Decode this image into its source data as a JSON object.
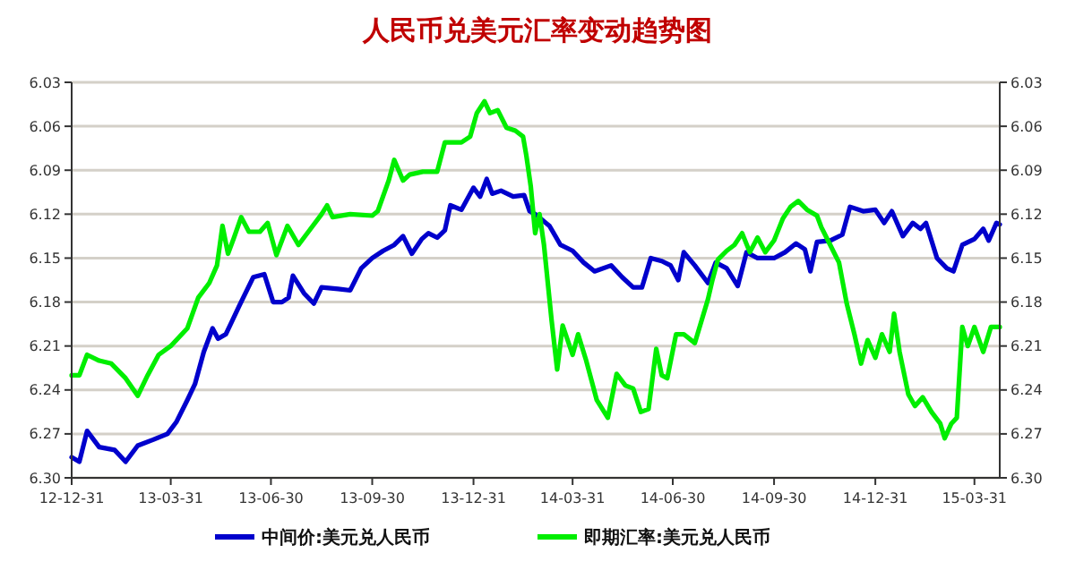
{
  "chart_data": {
    "type": "line",
    "title": "人民币兑美元汇率变动趋势图",
    "xlim": [
      "2012-12-31",
      "2015-04-23"
    ],
    "xticks": [
      {
        "value": "2012-12-31",
        "label": "12-12-31"
      },
      {
        "value": "2013-03-31",
        "label": "13-03-31"
      },
      {
        "value": "2013-06-30",
        "label": "13-06-30"
      },
      {
        "value": "2013-09-30",
        "label": "13-09-30"
      },
      {
        "value": "2013-12-31",
        "label": "13-12-31"
      },
      {
        "value": "2014-03-31",
        "label": "14-03-31"
      },
      {
        "value": "2014-06-30",
        "label": "14-06-30"
      },
      {
        "value": "2014-09-30",
        "label": "14-09-30"
      },
      {
        "value": "2014-12-31",
        "label": "14-12-31"
      },
      {
        "value": "2015-03-31",
        "label": "15-03-31"
      }
    ],
    "ylim": [
      6.3,
      6.03
    ],
    "yticks": [
      6.03,
      6.06,
      6.09,
      6.12,
      6.15,
      6.18,
      6.21,
      6.24,
      6.27,
      {
        "value": 6.3,
        "label": "6.30"
      }
    ],
    "y2lim": [
      6.3,
      6.03
    ],
    "y2ticks": [
      6.03,
      6.06,
      6.09,
      6.12,
      6.15,
      6.18,
      6.21,
      6.24,
      6.27,
      {
        "value": 6.3,
        "label": "6.30"
      }
    ],
    "grid": "y",
    "legend": "bottom",
    "marker": "none",
    "line_style": "solid",
    "series": [
      {
        "name": "中间价:美元兑人民币",
        "color": "#0000cc",
        "x": [
          "2012-12-31",
          "2013-01-07",
          "2013-01-14",
          "2013-01-25",
          "2013-02-08",
          "2013-02-18",
          "2013-03-01",
          "2013-03-15",
          "2013-03-28",
          "2013-04-05",
          "2013-04-15",
          "2013-04-22",
          "2013-04-30",
          "2013-05-08",
          "2013-05-13",
          "2013-05-20",
          "2013-06-01",
          "2013-06-14",
          "2013-06-24",
          "2013-07-02",
          "2013-07-10",
          "2013-07-16",
          "2013-07-20",
          "2013-07-30",
          "2013-08-08",
          "2013-08-15",
          "2013-08-30",
          "2013-09-10",
          "2013-09-20",
          "2013-09-30",
          "2013-10-10",
          "2013-10-20",
          "2013-10-28",
          "2013-11-05",
          "2013-11-14",
          "2013-11-20",
          "2013-11-28",
          "2013-12-05",
          "2013-12-10",
          "2013-12-20",
          "2013-12-31",
          "2014-01-06",
          "2014-01-12",
          "2014-01-17",
          "2014-01-25",
          "2014-02-05",
          "2014-02-15",
          "2014-02-20",
          "2014-02-25",
          "2014-03-10",
          "2014-03-20",
          "2014-03-31",
          "2014-04-10",
          "2014-04-20",
          "2014-05-05",
          "2014-05-15",
          "2014-05-25",
          "2014-06-02",
          "2014-06-10",
          "2014-06-20",
          "2014-06-28",
          "2014-07-05",
          "2014-07-10",
          "2014-07-20",
          "2014-08-01",
          "2014-08-08",
          "2014-08-18",
          "2014-08-28",
          "2014-09-05",
          "2014-09-15",
          "2014-09-30",
          "2014-10-10",
          "2014-10-20",
          "2014-10-28",
          "2014-11-02",
          "2014-11-08",
          "2014-11-20",
          "2014-12-01",
          "2014-12-08",
          "2014-12-20",
          "2014-12-31",
          "2015-01-08",
          "2015-01-15",
          "2015-01-25",
          "2015-02-03",
          "2015-02-10",
          "2015-02-15",
          "2015-02-25",
          "2015-03-06",
          "2015-03-12",
          "2015-03-20",
          "2015-03-31",
          "2015-04-08",
          "2015-04-13",
          "2015-04-20",
          "2015-04-23"
        ],
        "values": [
          6.286,
          6.289,
          6.268,
          6.279,
          6.281,
          6.289,
          6.278,
          6.274,
          6.27,
          6.262,
          6.247,
          6.236,
          6.214,
          6.198,
          6.205,
          6.202,
          6.183,
          6.163,
          6.161,
          6.18,
          6.18,
          6.177,
          6.162,
          6.174,
          6.181,
          6.17,
          6.171,
          6.172,
          6.157,
          6.15,
          6.145,
          6.141,
          6.135,
          6.147,
          6.137,
          6.133,
          6.136,
          6.131,
          6.114,
          6.117,
          6.102,
          6.108,
          6.096,
          6.106,
          6.104,
          6.108,
          6.107,
          6.118,
          6.12,
          6.128,
          6.141,
          6.145,
          6.153,
          6.159,
          6.155,
          6.163,
          6.17,
          6.17,
          6.15,
          6.152,
          6.155,
          6.165,
          6.146,
          6.155,
          6.167,
          6.153,
          6.157,
          6.169,
          6.146,
          6.15,
          6.15,
          6.146,
          6.14,
          6.144,
          6.159,
          6.139,
          6.138,
          6.134,
          6.115,
          6.118,
          6.117,
          6.126,
          6.118,
          6.135,
          6.126,
          6.13,
          6.126,
          6.15,
          6.157,
          6.159,
          6.141,
          6.137,
          6.13,
          6.138,
          6.126,
          6.127
        ]
      },
      {
        "name": "即期汇率:美元兑人民币",
        "color": "#00ee00",
        "x": [
          "2012-12-31",
          "2013-01-07",
          "2013-01-14",
          "2013-01-25",
          "2013-02-05",
          "2013-02-18",
          "2013-03-01",
          "2013-03-10",
          "2013-03-20",
          "2013-03-31",
          "2013-04-15",
          "2013-04-25",
          "2013-05-05",
          "2013-05-12",
          "2013-05-17",
          "2013-05-22",
          "2013-05-27",
          "2013-06-03",
          "2013-06-10",
          "2013-06-20",
          "2013-06-27",
          "2013-07-05",
          "2013-07-15",
          "2013-07-25",
          "2013-08-05",
          "2013-08-15",
          "2013-08-20",
          "2013-08-25",
          "2013-09-10",
          "2013-09-30",
          "2013-10-05",
          "2013-10-15",
          "2013-10-20",
          "2013-10-28",
          "2013-11-03",
          "2013-11-15",
          "2013-11-28",
          "2013-12-05",
          "2013-12-20",
          "2013-12-28",
          "2014-01-03",
          "2014-01-10",
          "2014-01-15",
          "2014-01-22",
          "2014-01-30",
          "2014-02-07",
          "2014-02-14",
          "2014-02-17",
          "2014-02-21",
          "2014-02-25",
          "2014-03-01",
          "2014-03-05",
          "2014-03-12",
          "2014-03-17",
          "2014-03-22",
          "2014-03-31",
          "2014-04-05",
          "2014-04-12",
          "2014-04-22",
          "2014-05-02",
          "2014-05-10",
          "2014-05-18",
          "2014-05-25",
          "2014-06-01",
          "2014-06-08",
          "2014-06-15",
          "2014-06-20",
          "2014-06-25",
          "2014-07-03",
          "2014-07-10",
          "2014-07-20",
          "2014-08-01",
          "2014-08-05",
          "2014-08-10",
          "2014-08-18",
          "2014-08-25",
          "2014-09-01",
          "2014-09-08",
          "2014-09-15",
          "2014-09-22",
          "2014-09-30",
          "2014-10-08",
          "2014-10-15",
          "2014-10-22",
          "2014-10-30",
          "2014-11-08",
          "2014-11-12",
          "2014-11-20",
          "2014-11-28",
          "2014-12-05",
          "2014-12-12",
          "2014-12-18",
          "2014-12-24",
          "2014-12-31",
          "2015-01-06",
          "2015-01-13",
          "2015-01-17",
          "2015-01-22",
          "2015-01-30",
          "2015-02-05",
          "2015-02-12",
          "2015-02-20",
          "2015-02-28",
          "2015-03-04",
          "2015-03-10",
          "2015-03-15",
          "2015-03-20",
          "2015-03-25",
          "2015-03-31",
          "2015-04-08",
          "2015-04-15",
          "2015-04-23"
        ],
        "values": [
          6.23,
          6.23,
          6.216,
          6.22,
          6.222,
          6.232,
          6.244,
          6.23,
          6.216,
          6.21,
          6.198,
          6.177,
          6.167,
          6.155,
          6.128,
          6.147,
          6.137,
          6.122,
          6.132,
          6.132,
          6.126,
          6.148,
          6.128,
          6.141,
          6.13,
          6.12,
          6.114,
          6.122,
          6.12,
          6.121,
          6.118,
          6.097,
          6.083,
          6.097,
          6.093,
          6.091,
          6.091,
          6.071,
          6.071,
          6.067,
          6.051,
          6.043,
          6.051,
          6.049,
          6.061,
          6.063,
          6.067,
          6.08,
          6.101,
          6.133,
          6.12,
          6.141,
          6.193,
          6.226,
          6.196,
          6.216,
          6.202,
          6.219,
          6.247,
          6.259,
          6.229,
          6.237,
          6.239,
          6.255,
          6.253,
          6.212,
          6.23,
          6.232,
          6.202,
          6.202,
          6.208,
          6.178,
          6.165,
          6.151,
          6.145,
          6.141,
          6.133,
          6.146,
          6.136,
          6.146,
          6.138,
          6.123,
          6.115,
          6.111,
          6.117,
          6.121,
          6.129,
          6.141,
          6.153,
          6.181,
          6.202,
          6.222,
          6.206,
          6.218,
          6.202,
          6.214,
          6.188,
          6.214,
          6.243,
          6.251,
          6.245,
          6.255,
          6.263,
          6.273,
          6.263,
          6.259,
          6.197,
          6.21,
          6.197,
          6.214,
          6.197,
          6.197
        ]
      }
    ]
  }
}
